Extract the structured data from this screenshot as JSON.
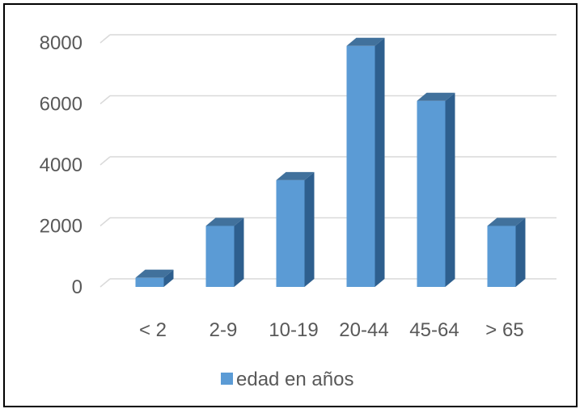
{
  "chart_data": {
    "type": "bar",
    "style": "3d-column",
    "categories": [
      "< 2",
      "2-9",
      "10-19",
      "20-44",
      "45-64",
      "> 65"
    ],
    "series": [
      {
        "name": "edad en años",
        "values": [
          300,
          2000,
          3500,
          7900,
          6100,
          2000
        ],
        "color": "#5B9BD5",
        "side_color": "#2E5F8E",
        "top_color": "#41719C"
      }
    ],
    "yticks": [
      0,
      2000,
      4000,
      6000,
      8000
    ],
    "ylim": [
      0,
      8000
    ],
    "grid": true,
    "grid_color": "#D9D9D9",
    "legend_position": "bottom"
  }
}
